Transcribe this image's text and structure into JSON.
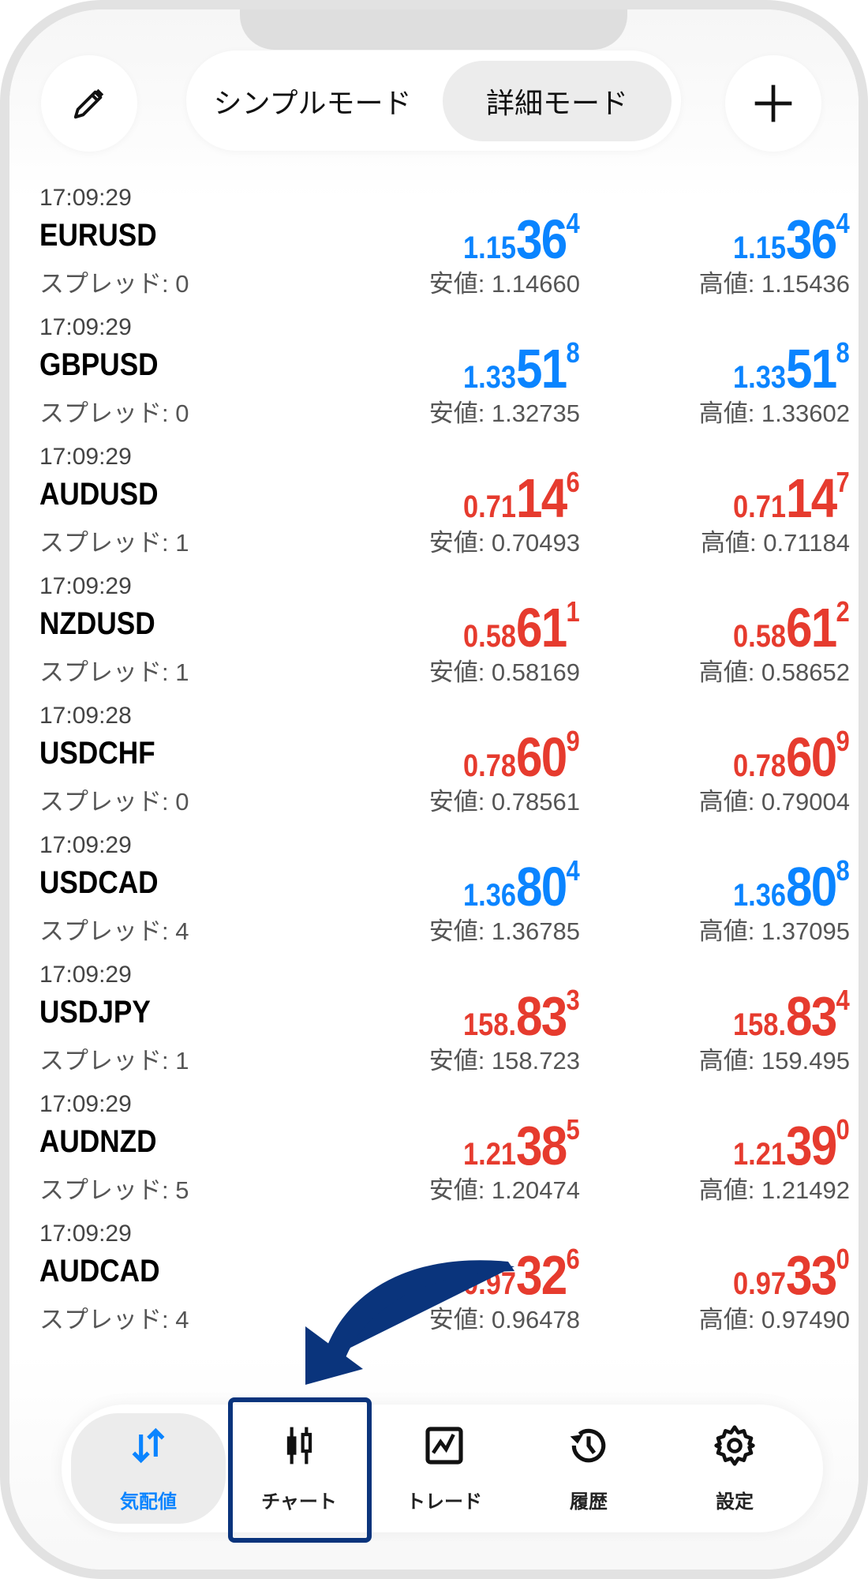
{
  "header": {
    "mode_simple": "シンプルモード",
    "mode_detail": "詳細モード",
    "selected_mode": "詳細モード",
    "edit_icon": "pencil-icon",
    "add_icon": "plus-icon"
  },
  "colors": {
    "up": "#0a84ff",
    "down": "#e63b2e",
    "highlight": "#0a347c"
  },
  "quotes": [
    {
      "time": "17:09:29",
      "symbol": "EURUSD",
      "spread": "スプレッド: 0",
      "dir": "up",
      "bid": {
        "pre": "1.15",
        "big": "36",
        "sup": "4"
      },
      "ask": {
        "pre": "1.15",
        "big": "36",
        "sup": "4"
      },
      "low": "安値: 1.14660",
      "high": "高値: 1.15436"
    },
    {
      "time": "17:09:29",
      "symbol": "GBPUSD",
      "spread": "スプレッド: 0",
      "dir": "up",
      "bid": {
        "pre": "1.33",
        "big": "51",
        "sup": "8"
      },
      "ask": {
        "pre": "1.33",
        "big": "51",
        "sup": "8"
      },
      "low": "安値: 1.32735",
      "high": "高値: 1.33602"
    },
    {
      "time": "17:09:29",
      "symbol": "AUDUSD",
      "spread": "スプレッド: 1",
      "dir": "down",
      "bid": {
        "pre": "0.71",
        "big": "14",
        "sup": "6"
      },
      "ask": {
        "pre": "0.71",
        "big": "14",
        "sup": "7"
      },
      "low": "安値: 0.70493",
      "high": "高値: 0.71184"
    },
    {
      "time": "17:09:29",
      "symbol": "NZDUSD",
      "spread": "スプレッド: 1",
      "dir": "down",
      "bid": {
        "pre": "0.58",
        "big": "61",
        "sup": "1"
      },
      "ask": {
        "pre": "0.58",
        "big": "61",
        "sup": "2"
      },
      "low": "安値: 0.58169",
      "high": "高値: 0.58652"
    },
    {
      "time": "17:09:28",
      "symbol": "USDCHF",
      "spread": "スプレッド: 0",
      "dir": "down",
      "bid": {
        "pre": "0.78",
        "big": "60",
        "sup": "9"
      },
      "ask": {
        "pre": "0.78",
        "big": "60",
        "sup": "9"
      },
      "low": "安値: 0.78561",
      "high": "高値: 0.79004"
    },
    {
      "time": "17:09:29",
      "symbol": "USDCAD",
      "spread": "スプレッド: 4",
      "dir": "up",
      "bid": {
        "pre": "1.36",
        "big": "80",
        "sup": "4"
      },
      "ask": {
        "pre": "1.36",
        "big": "80",
        "sup": "8"
      },
      "low": "安値: 1.36785",
      "high": "高値: 1.37095"
    },
    {
      "time": "17:09:29",
      "symbol": "USDJPY",
      "spread": "スプレッド: 1",
      "dir": "down",
      "bid": {
        "pre": "158.",
        "big": "83",
        "sup": "3"
      },
      "ask": {
        "pre": "158.",
        "big": "83",
        "sup": "4"
      },
      "low": "安値: 158.723",
      "high": "高値: 159.495"
    },
    {
      "time": "17:09:29",
      "symbol": "AUDNZD",
      "spread": "スプレッド: 5",
      "dir": "down",
      "bid": {
        "pre": "1.21",
        "big": "38",
        "sup": "5"
      },
      "ask": {
        "pre": "1.21",
        "big": "39",
        "sup": "0"
      },
      "low": "安値: 1.20474",
      "high": "高値: 1.21492"
    },
    {
      "time": "17:09:29",
      "symbol": "AUDCAD",
      "spread": "スプレッド: 4",
      "dir": "down",
      "bid": {
        "pre": "0.97",
        "big": "32",
        "sup": "6"
      },
      "ask": {
        "pre": "0.97",
        "big": "33",
        "sup": "0"
      },
      "low": "安値: 0.96478",
      "high": "高値: 0.97490"
    }
  ],
  "nav": [
    {
      "label": "気配値",
      "icon": "quotes-arrows-icon",
      "active": true
    },
    {
      "label": "チャート",
      "icon": "candlestick-icon",
      "active": false
    },
    {
      "label": "トレード",
      "icon": "trade-chart-icon",
      "active": false
    },
    {
      "label": "履歴",
      "icon": "history-clock-icon",
      "active": false
    },
    {
      "label": "設定",
      "icon": "gear-icon",
      "active": false
    }
  ]
}
